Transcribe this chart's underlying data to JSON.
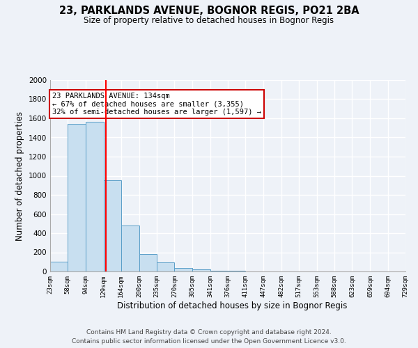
{
  "title_line1": "23, PARKLANDS AVENUE, BOGNOR REGIS, PO21 2BA",
  "title_line2": "Size of property relative to detached houses in Bognor Regis",
  "xlabel": "Distribution of detached houses by size in Bognor Regis",
  "ylabel": "Number of detached properties",
  "bin_edges": [
    23,
    58,
    94,
    129,
    164,
    200,
    235,
    270,
    305,
    341,
    376,
    411,
    447,
    482,
    517,
    553,
    588,
    623,
    659,
    694,
    729
  ],
  "bar_heights": [
    100,
    1540,
    1560,
    950,
    480,
    185,
    95,
    35,
    20,
    10,
    5,
    3,
    3,
    2,
    2,
    1,
    1,
    1,
    1,
    1
  ],
  "bar_color": "#c8dff0",
  "bar_edge_color": "#5a9ec8",
  "red_line_x": 134,
  "annotation_title": "23 PARKLANDS AVENUE: 134sqm",
  "annotation_line2": "← 67% of detached houses are smaller (3,355)",
  "annotation_line3": "32% of semi-detached houses are larger (1,597) →",
  "annotation_box_color": "#ffffff",
  "annotation_border_color": "#cc0000",
  "ylim": [
    0,
    2000
  ],
  "yticks": [
    0,
    200,
    400,
    600,
    800,
    1000,
    1200,
    1400,
    1600,
    1800,
    2000
  ],
  "tick_labels": [
    "23sqm",
    "58sqm",
    "94sqm",
    "129sqm",
    "164sqm",
    "200sqm",
    "235sqm",
    "270sqm",
    "305sqm",
    "341sqm",
    "376sqm",
    "411sqm",
    "447sqm",
    "482sqm",
    "517sqm",
    "553sqm",
    "588sqm",
    "623sqm",
    "659sqm",
    "694sqm",
    "729sqm"
  ],
  "footer_line1": "Contains HM Land Registry data © Crown copyright and database right 2024.",
  "footer_line2": "Contains public sector information licensed under the Open Government Licence v3.0.",
  "bg_color": "#eef2f8",
  "grid_color": "#ffffff"
}
